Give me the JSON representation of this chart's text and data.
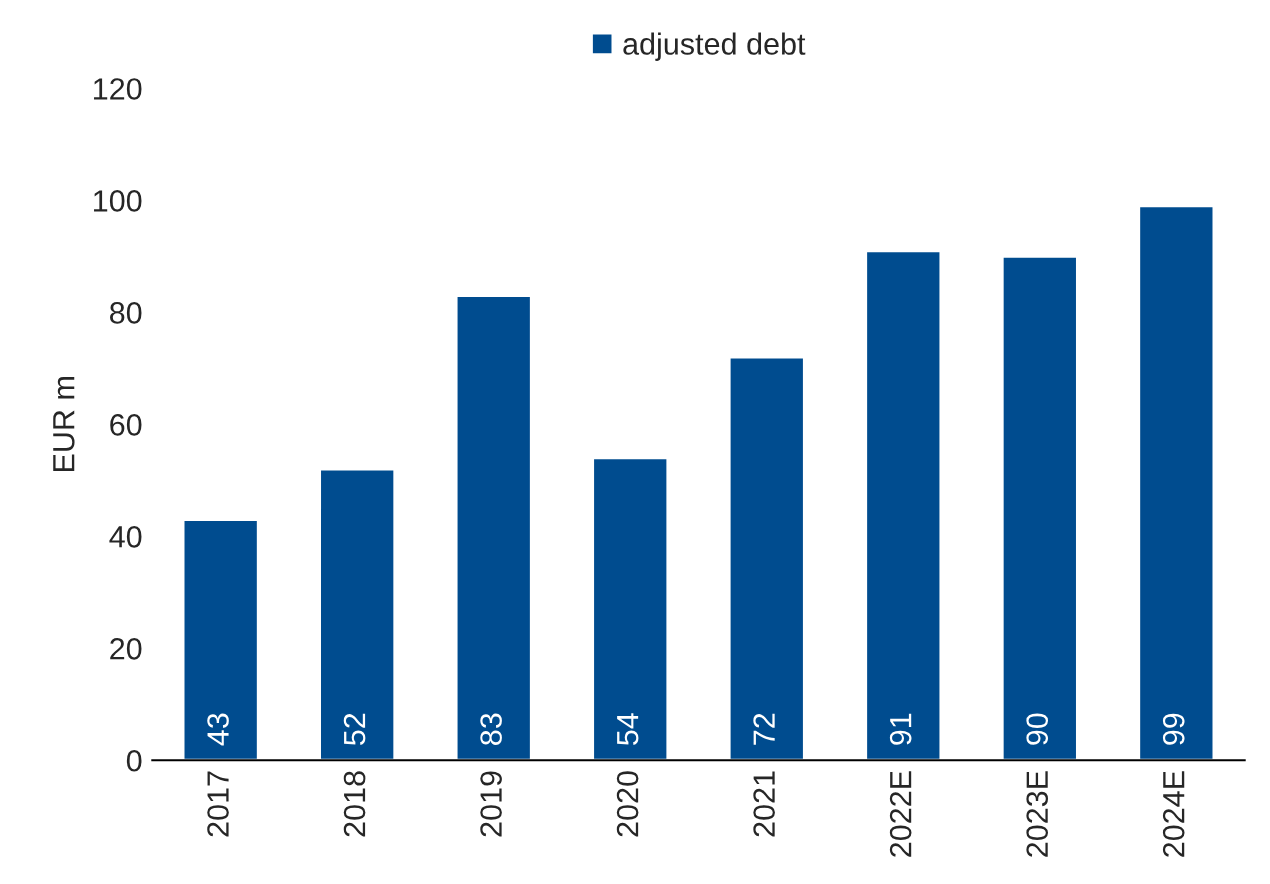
{
  "chart_data": {
    "type": "bar",
    "categories": [
      "2017",
      "2018",
      "2019",
      "2020",
      "2021",
      "2022E",
      "2023E",
      "2024E"
    ],
    "series": [
      {
        "name": "adjusted debt",
        "color": "#004c8f",
        "values": [
          43,
          52,
          83,
          54,
          72,
          91,
          90,
          99
        ]
      }
    ],
    "ylabel": "EUR m",
    "ylim": [
      0,
      120
    ],
    "yticks": [
      0,
      20,
      40,
      60,
      80,
      100,
      120
    ],
    "data_labels": true,
    "legend": "top",
    "grid": false
  }
}
